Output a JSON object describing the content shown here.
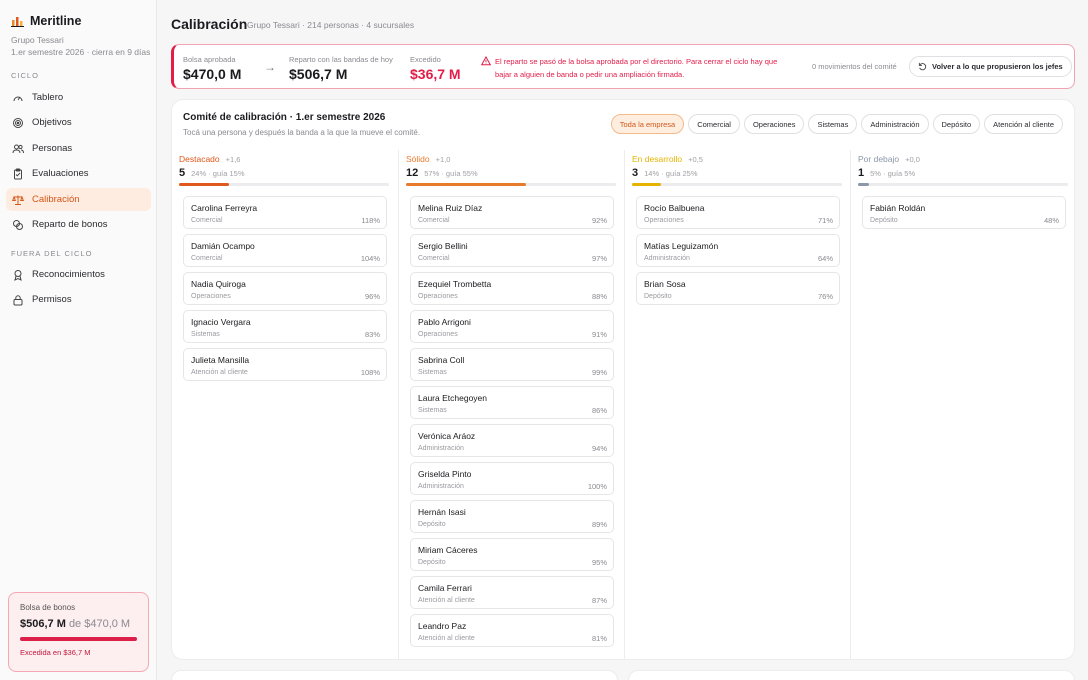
{
  "app": {
    "brand": "Meritline",
    "org_line1": "Grupo Tessari",
    "org_line2": "1.er semestre 2026 · cierra en 9 días"
  },
  "sidebar": {
    "section_cycle": "CICLO",
    "section_out": "FUERA DEL CICLO",
    "items": [
      {
        "label": "Tablero",
        "icon": "gauge-icon"
      },
      {
        "label": "Objetivos",
        "icon": "target-icon"
      },
      {
        "label": "Personas",
        "icon": "people-icon"
      },
      {
        "label": "Evaluaciones",
        "icon": "clipboard-icon"
      },
      {
        "label": "Calibración",
        "icon": "scale-icon"
      },
      {
        "label": "Reparto de bonos",
        "icon": "coins-icon"
      },
      {
        "label": "Reconocimientos",
        "icon": "award-icon"
      },
      {
        "label": "Permisos",
        "icon": "lock-icon"
      }
    ],
    "bonus": {
      "label": "Bolsa de bonos",
      "amount": "$506,7 M",
      "of_text": "de $470,0 M",
      "warning": "Excedida en $36,7 M"
    }
  },
  "header": {
    "title": "Calibración",
    "subtitle": "Grupo Tessari · 214 personas · 4 sucursales"
  },
  "budget": {
    "approved_label": "Bolsa aprobada",
    "approved_value": "$470,0 M",
    "today_label": "Reparto con las bandas de hoy",
    "today_value": "$506,7 M",
    "exceeded_label": "Excedido",
    "exceeded_value": "$36,7 M",
    "alert_text": "El reparto se pasó de la bolsa aprobada por el directorio. Para cerrar el ciclo hay que bajar a alguien de banda o pedir una ampliación firmada.",
    "moves": "0 movimientos del comité",
    "revert_label": "Volver a lo que propusieron los jefes"
  },
  "committee": {
    "title": "Comité de calibración · 1.er semestre 2026",
    "subtitle": "Tocá una persona y después la banda a la que la mueve el comité.",
    "filters": [
      "Toda la empresa",
      "Comercial",
      "Operaciones",
      "Sistemas",
      "Administración",
      "Depósito",
      "Atención al cliente"
    ],
    "columns": [
      {
        "name": "Destacado",
        "delta": "+1,6",
        "count": "5",
        "guide": "24% · guía 15%",
        "color": "#e0581b",
        "fill": 0.24,
        "people": [
          {
            "name": "Carolina Ferreyra",
            "dept": "Comercial",
            "pct": "118%"
          },
          {
            "name": "Damián Ocampo",
            "dept": "Comercial",
            "pct": "104%"
          },
          {
            "name": "Nadia Quiroga",
            "dept": "Operaciones",
            "pct": "96%"
          },
          {
            "name": "Ignacio Vergara",
            "dept": "Sistemas",
            "pct": "83%"
          },
          {
            "name": "Julieta Mansilla",
            "dept": "Atención al cliente",
            "pct": "108%"
          }
        ]
      },
      {
        "name": "Sólido",
        "delta": "+1,0",
        "count": "12",
        "guide": "57% · guía 55%",
        "color": "#e87a2c",
        "fill": 0.57,
        "people": [
          {
            "name": "Melina Ruiz Díaz",
            "dept": "Comercial",
            "pct": "92%"
          },
          {
            "name": "Sergio Bellini",
            "dept": "Comercial",
            "pct": "97%"
          },
          {
            "name": "Ezequiel Trombetta",
            "dept": "Operaciones",
            "pct": "88%"
          },
          {
            "name": "Pablo Arrigoni",
            "dept": "Operaciones",
            "pct": "91%"
          },
          {
            "name": "Sabrina Coll",
            "dept": "Sistemas",
            "pct": "99%"
          },
          {
            "name": "Laura Etchegoyen",
            "dept": "Sistemas",
            "pct": "86%"
          },
          {
            "name": "Verónica Aráoz",
            "dept": "Administración",
            "pct": "94%"
          },
          {
            "name": "Griselda Pinto",
            "dept": "Administración",
            "pct": "100%"
          },
          {
            "name": "Hernán Isasi",
            "dept": "Depósito",
            "pct": "89%"
          },
          {
            "name": "Miriam Cáceres",
            "dept": "Depósito",
            "pct": "95%"
          },
          {
            "name": "Camila Ferrari",
            "dept": "Atención al cliente",
            "pct": "87%"
          },
          {
            "name": "Leandro Paz",
            "dept": "Atención al cliente",
            "pct": "81%"
          }
        ]
      },
      {
        "name": "En desarrollo",
        "delta": "+0,5",
        "count": "3",
        "guide": "14% · guía 25%",
        "color": "#e6b400",
        "fill": 0.14,
        "people": [
          {
            "name": "Rocío Balbuena",
            "dept": "Operaciones",
            "pct": "71%"
          },
          {
            "name": "Matías Leguizamón",
            "dept": "Administración",
            "pct": "64%"
          },
          {
            "name": "Brian Sosa",
            "dept": "Depósito",
            "pct": "76%"
          }
        ]
      },
      {
        "name": "Por debajo",
        "delta": "+0,0",
        "count": "1",
        "guide": "5% · guía 5%",
        "color": "#8b98a8",
        "fill": 0.05,
        "people": [
          {
            "name": "Fabián Roldán",
            "dept": "Depósito",
            "pct": "48%"
          }
        ]
      }
    ]
  },
  "colors": {
    "accent": "#e0581b",
    "danger": "#e11d48"
  }
}
